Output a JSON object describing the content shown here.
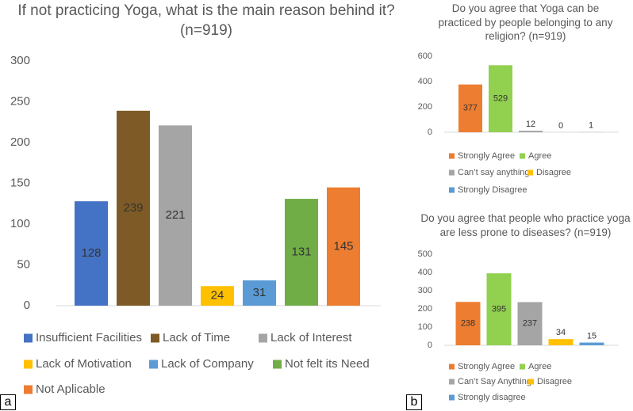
{
  "panels": [
    "a",
    "b"
  ],
  "chart_data": [
    {
      "type": "bar",
      "title": "If not practicing Yoga, what is the main reason behind it? (n=919)",
      "categories": [
        "Insufficient Facilities",
        "Lack of Time",
        "Lack of Interest",
        "Lack of Motivation",
        "Lack of Company",
        "Not felt its Need",
        "Not Aplicable"
      ],
      "values": [
        128,
        239,
        221,
        24,
        31,
        131,
        145
      ],
      "colors": [
        "#4472c4",
        "#7e5b26",
        "#a5a5a5",
        "#ffc000",
        "#5b9bd5",
        "#70ad47",
        "#ed7d31"
      ],
      "ylim": [
        0,
        300
      ],
      "yticks": [
        0,
        50,
        100,
        150,
        200,
        250,
        300
      ],
      "grid": false
    },
    {
      "type": "bar",
      "title": "Do you agree that Yoga can be practiced by people belonging to any religion? (n=919)",
      "categories": [
        "Strongly Agree",
        "Agree",
        "Can’t say anything",
        "Disagree",
        "Strongly Disagree"
      ],
      "values": [
        377,
        529,
        12,
        0,
        1
      ],
      "colors": [
        "#ed7d31",
        "#92d050",
        "#a5a5a5",
        "#ffc000",
        "#5b9bd5"
      ],
      "ylim": [
        0,
        600
      ],
      "yticks": [
        0,
        200,
        400,
        600
      ],
      "grid": false
    },
    {
      "type": "bar",
      "title": "Do you agree that people who practice yoga are less prone to diseases? (n=919)",
      "categories": [
        "Strongly Agree",
        "Agree",
        "Can’t Say Anything",
        "Disagree",
        "Strongly disagree"
      ],
      "values": [
        238,
        395,
        237,
        34,
        15
      ],
      "colors": [
        "#ed7d31",
        "#92d050",
        "#a5a5a5",
        "#ffc000",
        "#5b9bd5"
      ],
      "ylim": [
        0,
        500
      ],
      "yticks": [
        0,
        100,
        200,
        300,
        400,
        500
      ],
      "grid": false
    }
  ]
}
